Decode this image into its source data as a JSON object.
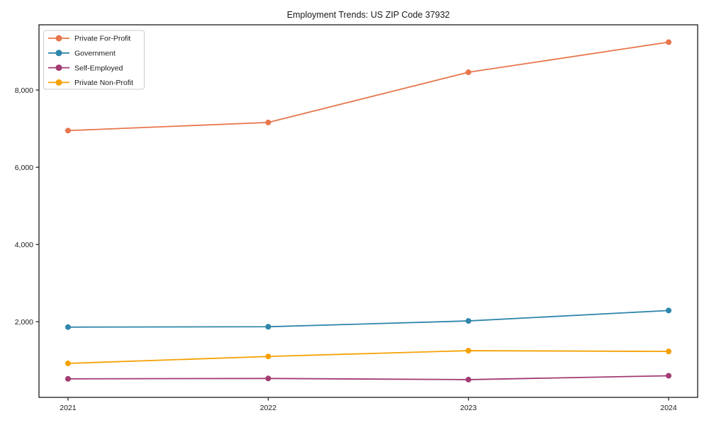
{
  "chart_data": {
    "type": "line",
    "title": "Employment Trends: US ZIP Code 37932",
    "xlabel": "",
    "ylabel": "",
    "x": [
      2021,
      2022,
      2023,
      2024
    ],
    "x_tick_labels": [
      "2021",
      "2022",
      "2023",
      "2024"
    ],
    "series": [
      {
        "name": "Private For-Profit",
        "color": "#E8764B",
        "values": [
          6950,
          7160,
          8460,
          9240
        ]
      },
      {
        "name": "Government",
        "color": "#2E86AB",
        "values": [
          1860,
          1870,
          2020,
          2290
        ]
      },
      {
        "name": "Self-Employed",
        "color": "#A23B72",
        "values": [
          520,
          530,
          500,
          600
        ]
      },
      {
        "name": "Private Non-Profit",
        "color": "#F5A104",
        "values": [
          920,
          1100,
          1250,
          1230
        ]
      }
    ],
    "yticks": [
      2000,
      4000,
      6000,
      8000
    ],
    "ytick_labels": [
      "2,000",
      "4,000",
      "6,000",
      "8,000"
    ],
    "ylim": [
      40,
      9690
    ],
    "xlim": [
      2020.855,
      2024.145
    ],
    "grid": false,
    "legend_position": "upper-left",
    "axis_color": "#1a1a1a",
    "background_color": "#ffffff"
  }
}
